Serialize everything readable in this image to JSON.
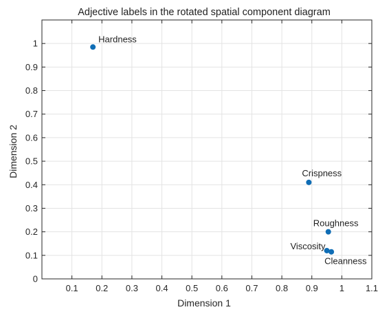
{
  "chart_data": {
    "type": "scatter",
    "title": "Adjective labels in the rotated spatial component diagram",
    "xlabel": "Dimension 1",
    "ylabel": "Dimension 2",
    "xlim": [
      0,
      1.1
    ],
    "ylim": [
      0,
      1.1
    ],
    "xticks": [
      {
        "value": 0.1,
        "label": "0.1"
      },
      {
        "value": 0.2,
        "label": "0.2"
      },
      {
        "value": 0.3,
        "label": "0.3"
      },
      {
        "value": 0.4,
        "label": "0.4"
      },
      {
        "value": 0.5,
        "label": "0.5"
      },
      {
        "value": 0.6,
        "label": "0.6"
      },
      {
        "value": 0.7,
        "label": "0.7"
      },
      {
        "value": 0.8,
        "label": "0.8"
      },
      {
        "value": 0.9,
        "label": "0.9"
      },
      {
        "value": 1.0,
        "label": "1"
      },
      {
        "value": 1.1,
        "label": "1.1"
      }
    ],
    "yticks": [
      {
        "value": 0,
        "label": "0"
      },
      {
        "value": 0.1,
        "label": "0.1"
      },
      {
        "value": 0.2,
        "label": "0.2"
      },
      {
        "value": 0.3,
        "label": "0.3"
      },
      {
        "value": 0.4,
        "label": "0.4"
      },
      {
        "value": 0.5,
        "label": "0.5"
      },
      {
        "value": 0.6,
        "label": "0.6"
      },
      {
        "value": 0.7,
        "label": "0.7"
      },
      {
        "value": 0.8,
        "label": "0.8"
      },
      {
        "value": 0.9,
        "label": "0.9"
      },
      {
        "value": 1.0,
        "label": "1"
      }
    ],
    "grid": true,
    "points": [
      {
        "label": "Hardness",
        "x": 0.17,
        "y": 0.985
      },
      {
        "label": "Crispness",
        "x": 0.89,
        "y": 0.41
      },
      {
        "label": "Roughness",
        "x": 0.955,
        "y": 0.2
      },
      {
        "label": "Viscosity",
        "x": 0.95,
        "y": 0.12
      },
      {
        "label": "Cleanness",
        "x": 0.965,
        "y": 0.115
      }
    ]
  },
  "colors": {
    "marker": "#0f6db5",
    "grid": "#e3e3e3",
    "axis": "#262626"
  }
}
